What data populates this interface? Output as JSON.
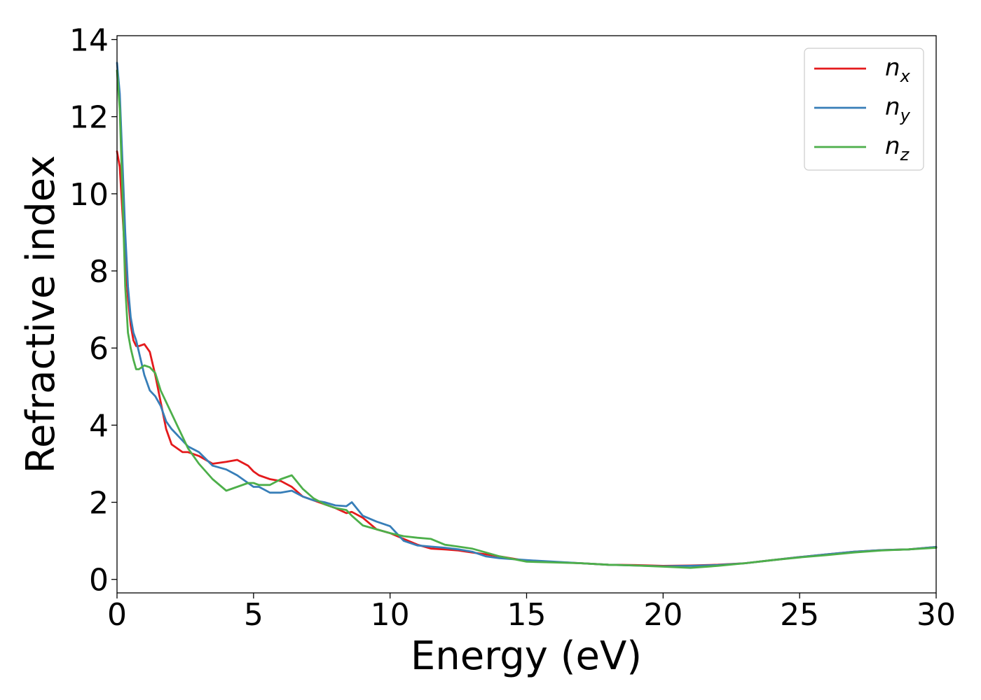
{
  "chart_data": {
    "type": "line",
    "title": "",
    "xlabel": "Energy (eV)",
    "ylabel": "Refractive index",
    "xlim": [
      0,
      30
    ],
    "ylim": [
      -0.35,
      14.1
    ],
    "xticks": [
      0,
      5,
      10,
      15,
      20,
      25,
      30
    ],
    "yticks": [
      0,
      2,
      4,
      6,
      8,
      10,
      12,
      14
    ],
    "grid": false,
    "legend_position": "top-right",
    "series": [
      {
        "name": "n",
        "subscript": "x",
        "color": "#e41a1c",
        "x": [
          0,
          0.1,
          0.2,
          0.3,
          0.4,
          0.5,
          0.6,
          0.7,
          0.8,
          1.0,
          1.2,
          1.4,
          1.6,
          1.8,
          2.0,
          2.2,
          2.4,
          2.6,
          3.0,
          3.5,
          4.0,
          4.4,
          4.8,
          5.0,
          5.2,
          5.6,
          6.0,
          6.4,
          6.8,
          7.2,
          7.6,
          8.0,
          8.4,
          8.6,
          9.0,
          9.5,
          10.0,
          10.5,
          11.0,
          11.5,
          12.0,
          12.5,
          13.0,
          13.5,
          14.0,
          15.0,
          16.0,
          17.0,
          18.0,
          19.0,
          20.0,
          21.0,
          22.0,
          23.0,
          24.0,
          25.0,
          26.0,
          27.0,
          28.0,
          29.0,
          30.0
        ],
        "y": [
          11.1,
          10.7,
          9.5,
          8.3,
          7.3,
          6.6,
          6.2,
          6.05,
          6.05,
          6.1,
          5.9,
          5.3,
          4.6,
          3.9,
          3.5,
          3.4,
          3.3,
          3.3,
          3.2,
          3.0,
          3.05,
          3.1,
          2.95,
          2.8,
          2.7,
          2.6,
          2.55,
          2.4,
          2.15,
          2.05,
          1.95,
          1.85,
          1.72,
          1.75,
          1.6,
          1.3,
          1.2,
          1.05,
          0.9,
          0.8,
          0.78,
          0.75,
          0.7,
          0.65,
          0.6,
          0.48,
          0.45,
          0.42,
          0.38,
          0.37,
          0.35,
          0.36,
          0.38,
          0.42,
          0.5,
          0.58,
          0.65,
          0.72,
          0.76,
          0.78,
          0.84
        ]
      },
      {
        "name": "n",
        "subscript": "y",
        "color": "#377eb8",
        "x": [
          0,
          0.1,
          0.2,
          0.3,
          0.4,
          0.5,
          0.6,
          0.7,
          0.8,
          1.0,
          1.2,
          1.4,
          1.6,
          1.8,
          2.0,
          2.2,
          2.4,
          2.6,
          3.0,
          3.5,
          4.0,
          4.4,
          4.8,
          5.0,
          5.2,
          5.6,
          6.0,
          6.4,
          6.8,
          7.2,
          7.6,
          8.0,
          8.4,
          8.6,
          9.0,
          9.5,
          10.0,
          10.5,
          11.0,
          11.5,
          12.0,
          12.5,
          13.0,
          13.5,
          14.0,
          15.0,
          16.0,
          17.0,
          18.0,
          19.0,
          20.0,
          21.0,
          22.0,
          23.0,
          24.0,
          25.0,
          26.0,
          27.0,
          28.0,
          29.0,
          30.0
        ],
        "y": [
          13.4,
          12.6,
          10.8,
          9.0,
          7.6,
          6.8,
          6.4,
          6.2,
          5.9,
          5.3,
          4.9,
          4.75,
          4.5,
          4.1,
          3.9,
          3.75,
          3.6,
          3.45,
          3.3,
          2.95,
          2.85,
          2.7,
          2.5,
          2.4,
          2.4,
          2.25,
          2.25,
          2.3,
          2.15,
          2.05,
          2.0,
          1.92,
          1.9,
          2.0,
          1.65,
          1.5,
          1.38,
          1.0,
          0.88,
          0.85,
          0.82,
          0.78,
          0.72,
          0.6,
          0.55,
          0.5,
          0.46,
          0.42,
          0.38,
          0.36,
          0.34,
          0.35,
          0.37,
          0.42,
          0.5,
          0.58,
          0.65,
          0.72,
          0.76,
          0.78,
          0.84
        ]
      },
      {
        "name": "n",
        "subscript": "z",
        "color": "#4daf4a",
        "x": [
          0,
          0.1,
          0.2,
          0.3,
          0.4,
          0.5,
          0.6,
          0.7,
          0.8,
          1.0,
          1.2,
          1.4,
          1.6,
          1.8,
          2.0,
          2.2,
          2.4,
          2.6,
          3.0,
          3.5,
          4.0,
          4.4,
          4.8,
          5.0,
          5.2,
          5.6,
          6.0,
          6.4,
          6.8,
          7.2,
          7.6,
          8.0,
          8.4,
          8.6,
          9.0,
          9.5,
          10.0,
          10.5,
          11.0,
          11.5,
          12.0,
          12.5,
          13.0,
          13.5,
          14.0,
          15.0,
          16.0,
          17.0,
          18.0,
          19.0,
          20.0,
          21.0,
          22.0,
          23.0,
          24.0,
          25.0,
          26.0,
          27.0,
          28.0,
          29.0,
          30.0
        ],
        "y": [
          13.2,
          12.2,
          10.0,
          7.6,
          6.4,
          6.0,
          5.7,
          5.45,
          5.45,
          5.55,
          5.5,
          5.35,
          4.9,
          4.6,
          4.3,
          4.0,
          3.7,
          3.4,
          3.0,
          2.6,
          2.3,
          2.4,
          2.5,
          2.5,
          2.45,
          2.45,
          2.6,
          2.7,
          2.35,
          2.1,
          1.95,
          1.85,
          1.8,
          1.65,
          1.4,
          1.3,
          1.2,
          1.12,
          1.08,
          1.05,
          0.9,
          0.85,
          0.8,
          0.7,
          0.6,
          0.46,
          0.44,
          0.42,
          0.38,
          0.36,
          0.33,
          0.3,
          0.35,
          0.42,
          0.5,
          0.57,
          0.63,
          0.7,
          0.75,
          0.78,
          0.82
        ]
      }
    ]
  }
}
